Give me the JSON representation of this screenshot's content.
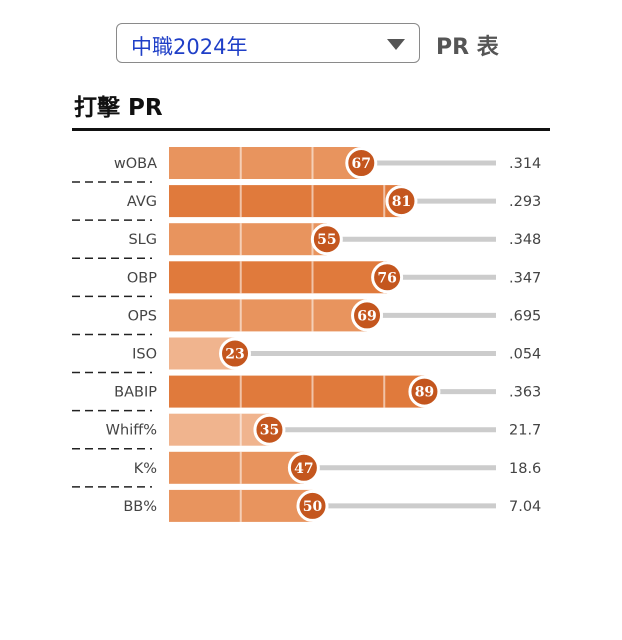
{
  "header": {
    "season_select_value": "中職2024年",
    "page_label": "PR 表",
    "section_title": "打擊 PR"
  },
  "chart_data": {
    "type": "bar",
    "orientation": "horizontal",
    "title": "打擊 PR",
    "xlim": [
      0,
      100
    ],
    "categories": [
      "wOBA",
      "AVG",
      "SLG",
      "OBP",
      "OPS",
      "ISO",
      "BABIP",
      "Whiff%",
      "K%",
      "BB%"
    ],
    "values": [
      67,
      81,
      55,
      76,
      69,
      23,
      89,
      35,
      47,
      50
    ],
    "stat_values": [
      ".314",
      ".293",
      ".348",
      ".347",
      ".695",
      ".054",
      ".363",
      "21.7",
      "18.6",
      "7.04"
    ],
    "grid": false,
    "colors": {
      "bar_low": "#f0b48e",
      "bar_mid": "#e8945e",
      "bar_high": "#e07a3c",
      "badge": "#c4561e",
      "track": "#cccccc"
    }
  }
}
